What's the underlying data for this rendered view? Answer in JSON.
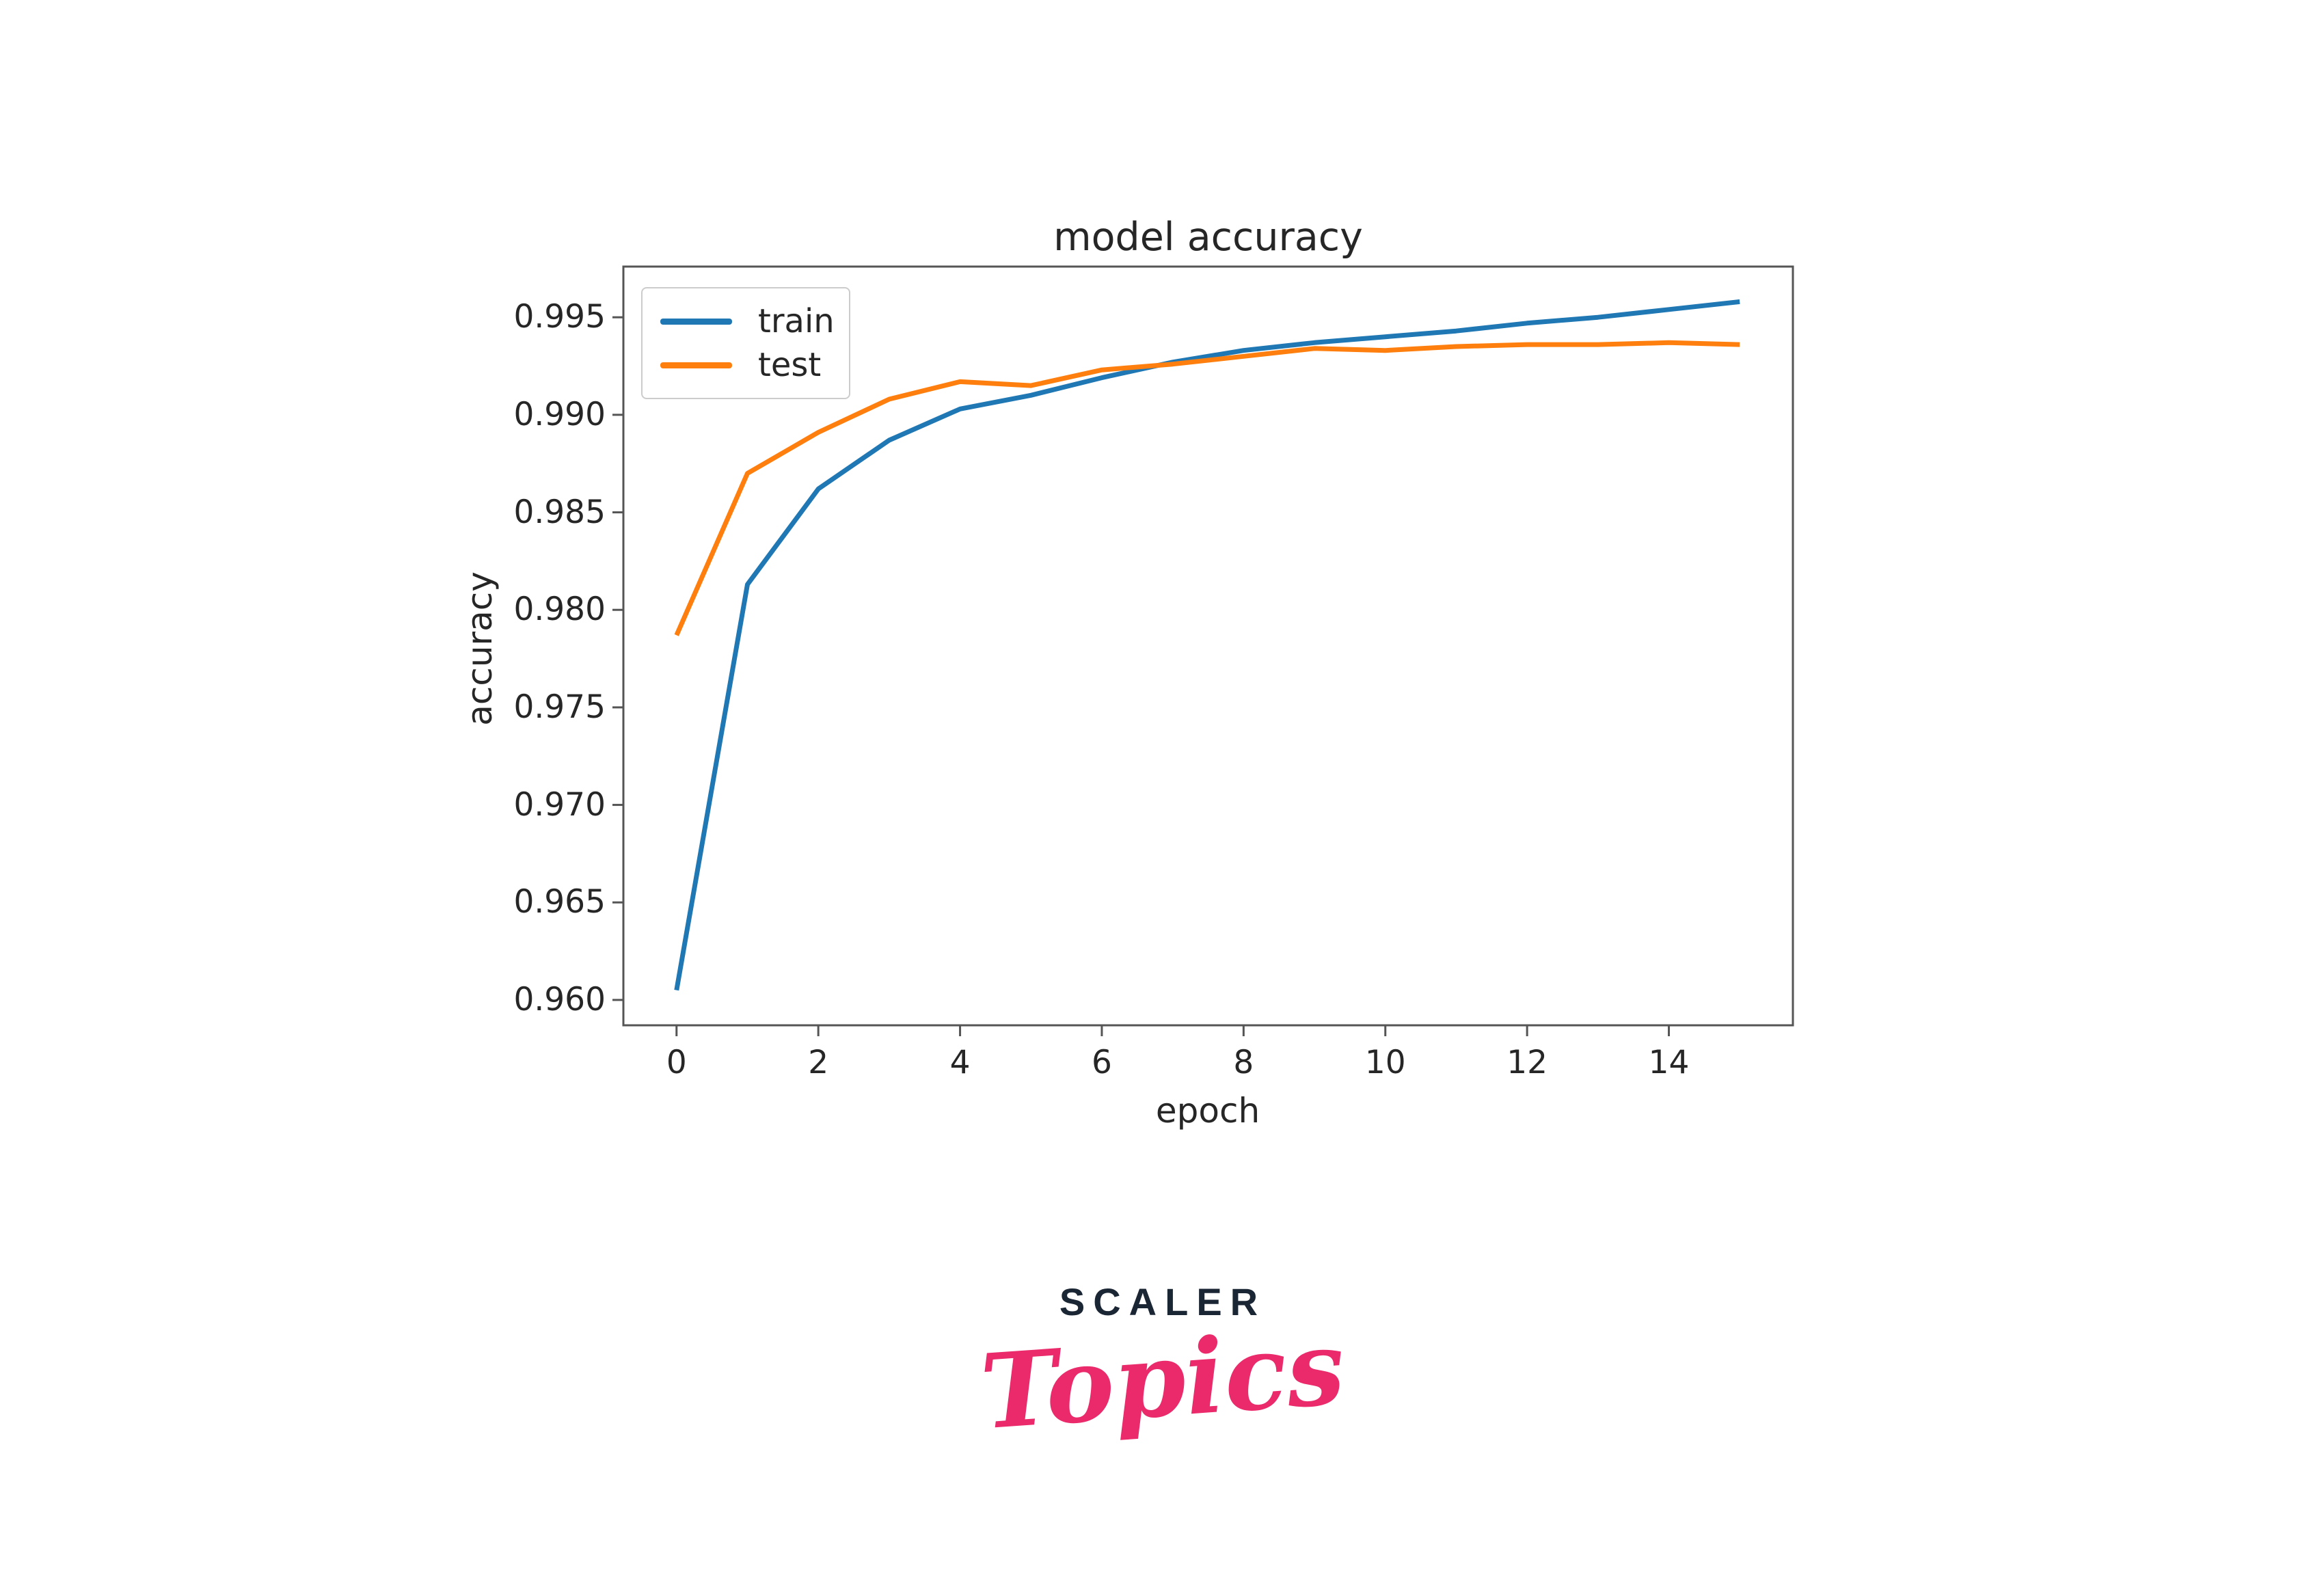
{
  "chart_data": {
    "type": "line",
    "title": "model accuracy",
    "xlabel": "epoch",
    "ylabel": "accuracy",
    "grid": false,
    "legend_position": "upper left",
    "xlim": [
      -0.75,
      15.75
    ],
    "ylim": [
      0.9587,
      0.9976
    ],
    "x": [
      0,
      1,
      2,
      3,
      4,
      5,
      6,
      7,
      8,
      9,
      10,
      11,
      12,
      13,
      14,
      15
    ],
    "series": [
      {
        "name": "train",
        "color": "#1f77b4",
        "values": [
          0.9605,
          0.9813,
          0.9862,
          0.9887,
          0.9903,
          0.991,
          0.9919,
          0.9927,
          0.9933,
          0.9937,
          0.994,
          0.9943,
          0.9947,
          0.995,
          0.9954,
          0.9958
        ]
      },
      {
        "name": "test",
        "color": "#ff7f0e",
        "values": [
          0.9787,
          0.987,
          0.9891,
          0.9908,
          0.9917,
          0.9915,
          0.9923,
          0.9926,
          0.993,
          0.9934,
          0.9933,
          0.9935,
          0.9936,
          0.9936,
          0.9937,
          0.9936
        ]
      }
    ],
    "xticks": {
      "values": [
        0,
        2,
        4,
        6,
        8,
        10,
        12,
        14
      ],
      "labels": [
        "0",
        "2",
        "4",
        "6",
        "8",
        "10",
        "12",
        "14"
      ]
    },
    "yticks": {
      "values": [
        0.995,
        0.99,
        0.985,
        0.98,
        0.975,
        0.97,
        0.965,
        0.96
      ],
      "labels": [
        "0.995",
        "0.990",
        "0.985",
        "0.980",
        "0.975",
        "0.970",
        "0.965",
        "0.960"
      ]
    },
    "spine_color": "#555555",
    "background": "#ffffff"
  },
  "logo": {
    "line1": "SCALER",
    "line2": "Topics",
    "navy": "#1b2634",
    "pink": "#ea2a6a"
  }
}
